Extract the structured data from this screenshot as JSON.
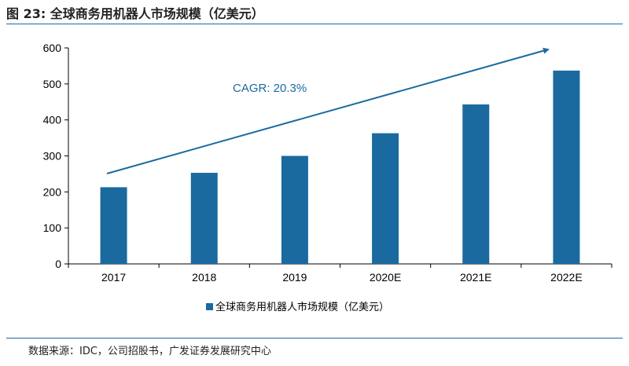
{
  "title": "图 23:  全球商务用机器人市场规模（亿美元）",
  "source": "数据来源：IDC，公司招股书，广发证券发展研究中心",
  "chart_data": {
    "type": "bar",
    "categories": [
      "2017",
      "2018",
      "2019",
      "2020E",
      "2021E",
      "2022E"
    ],
    "series": [
      {
        "name": "全球商务用机器人市场规模（亿美元）",
        "values": [
          213,
          253,
          300,
          363,
          443,
          537
        ]
      }
    ],
    "yticks": [
      0,
      100,
      200,
      300,
      400,
      500,
      600
    ],
    "ylim": [
      0,
      600
    ],
    "grid": false,
    "legend": "bottom",
    "bar_color": "#1a6aa0",
    "annotation": "CAGR: 20.3%"
  }
}
